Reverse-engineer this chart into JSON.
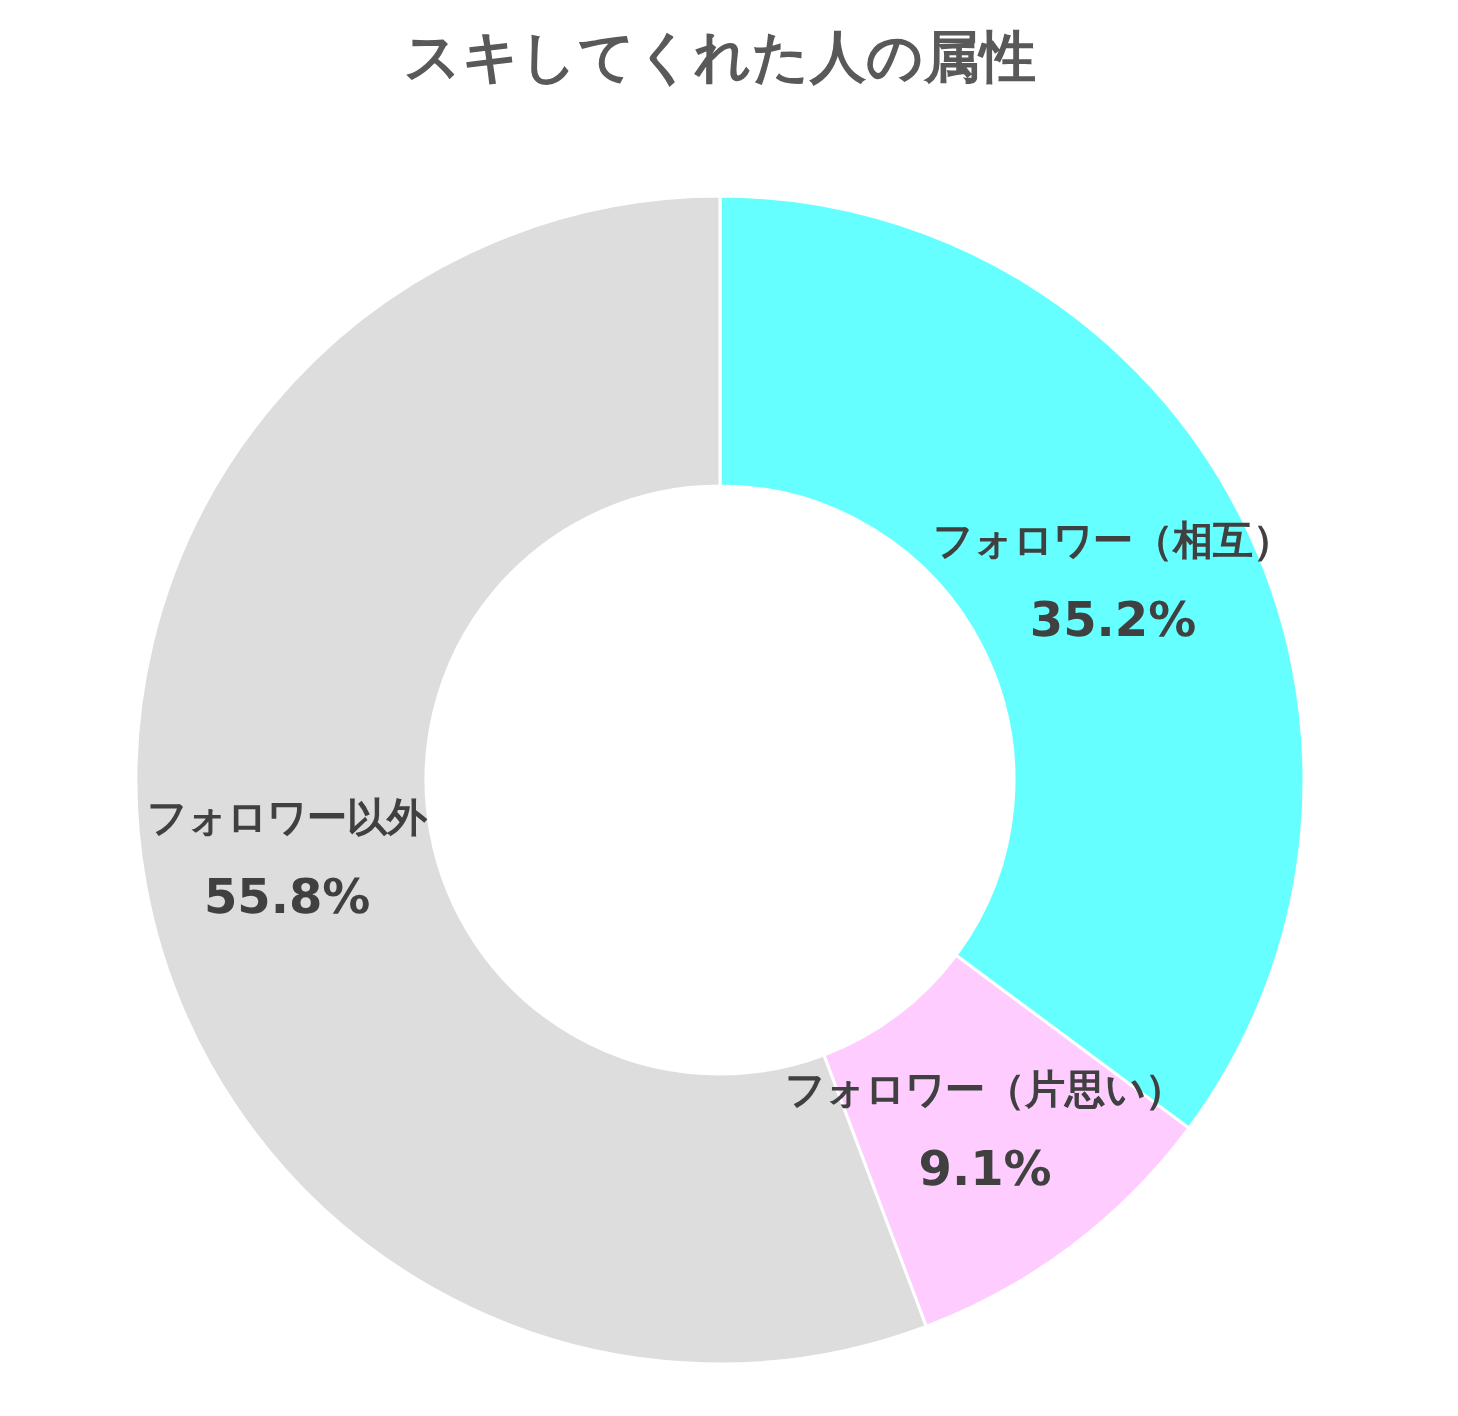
{
  "chart_data": {
    "type": "donut",
    "title": "スキしてくれた人の属性",
    "categories": [
      "フォロワー（相互）",
      "フォロワー（片思い）",
      "フォロワー以外"
    ],
    "values": [
      35.2,
      9.1,
      55.8
    ],
    "colors": [
      "#66ffff",
      "#ffccff",
      "#dddddd"
    ],
    "value_labels": [
      "35.2%",
      "9.1%",
      "55.8%"
    ],
    "legend": false
  }
}
